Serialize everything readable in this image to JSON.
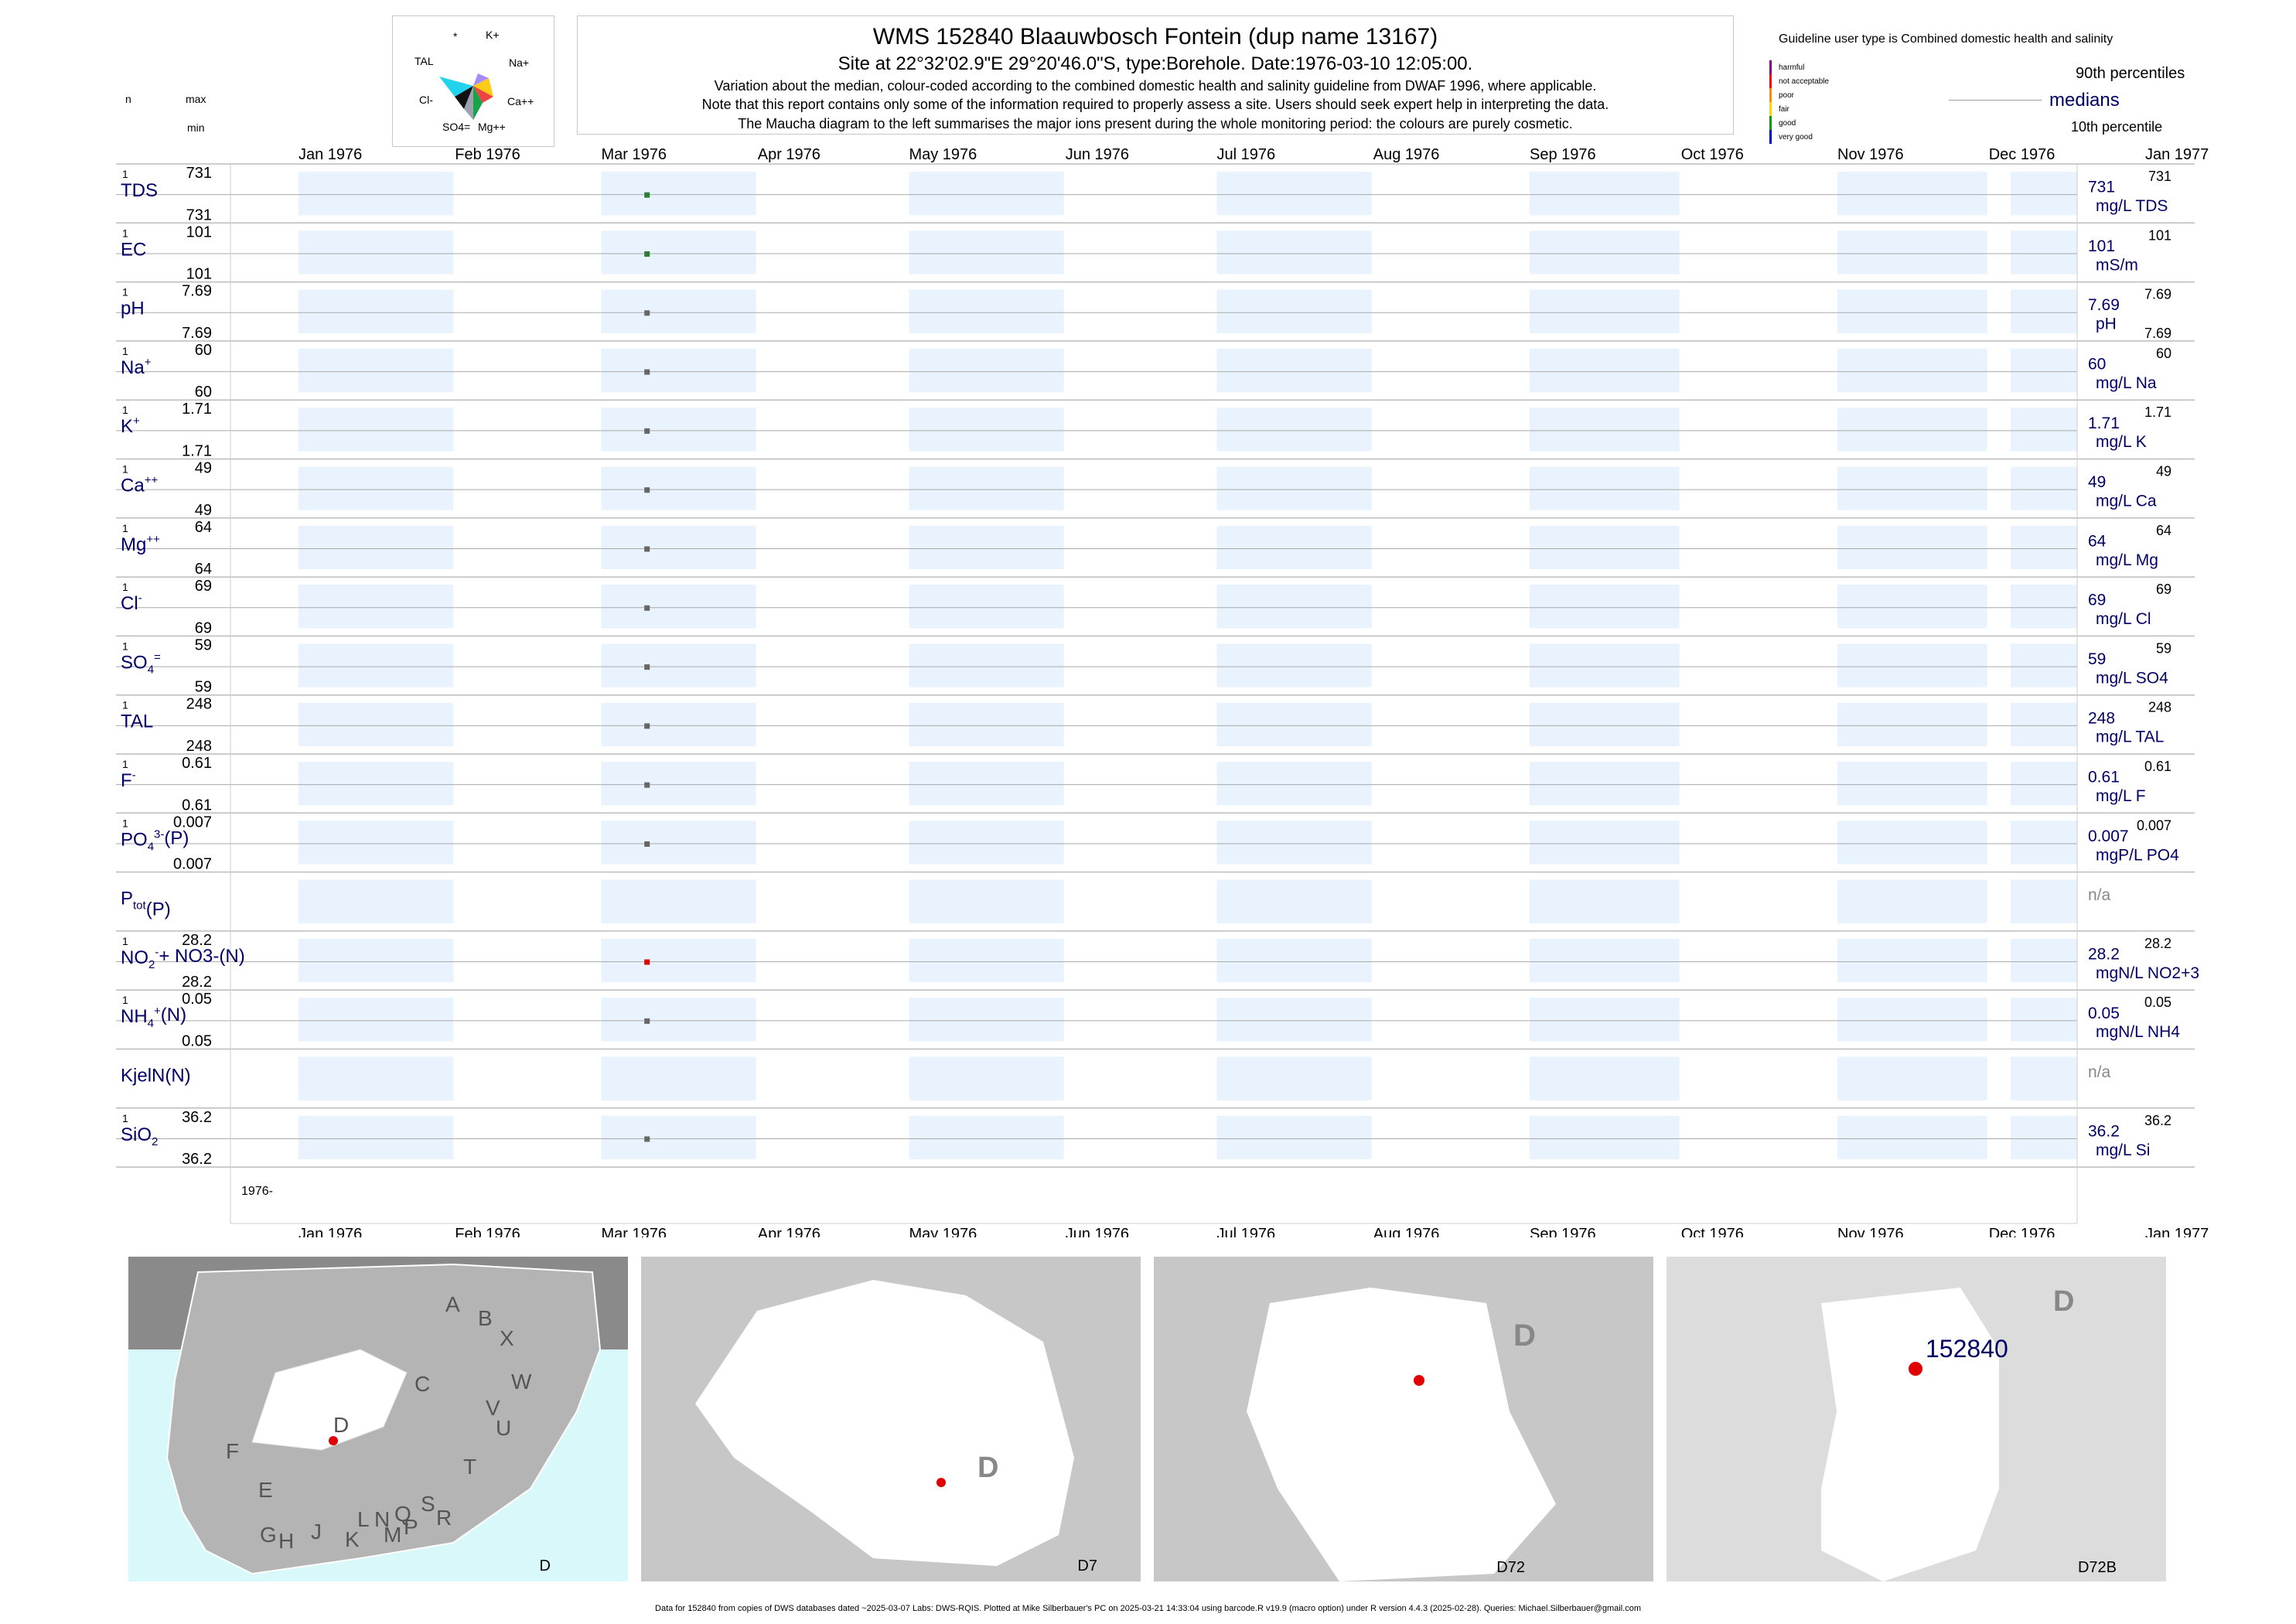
{
  "header": {
    "title": "WMS 152840  Blaauwbosch Fontein (dup name 13167)",
    "subtitle": "Site at 22°32'02.9\"E 29°20'46.0\"S, type:Borehole. Date:1976-03-10 12:05:00.",
    "notes": [
      "Variation about the median,  colour-coded according to the combined domestic health and salinity guideline from DWAF 1996, where applicable.",
      "Note that this report contains only some of the information required to properly assess a site. Users should seek expert help in interpreting the data.",
      "The Maucha diagram to the left summarises the major ions present during the whole monitoring period: the colours are purely cosmetic."
    ]
  },
  "maucha": {
    "labels": [
      "*",
      "K+",
      "TAL",
      "Na+",
      "Cl-",
      "Ca++",
      "SO4=",
      "Mg++"
    ]
  },
  "left_header": {
    "n": "n",
    "max": "max",
    "min": "min"
  },
  "legend": {
    "guideline_title": "Guideline user type is Combined domestic health and salinity",
    "classes": [
      {
        "label": "harmful",
        "color": "#8b008b"
      },
      {
        "label": "not acceptable",
        "color": "#ff0000"
      },
      {
        "label": "poor",
        "color": "#ff8c00"
      },
      {
        "label": "fair",
        "color": "#ffd700"
      },
      {
        "label": "good",
        "color": "#00a000"
      },
      {
        "label": "very good",
        "color": "#0000cd"
      }
    ],
    "p90": "90th percentiles",
    "medians": "medians",
    "p10": "10th percentile"
  },
  "chart_data": {
    "type": "scatter",
    "x_ticks": [
      "Jan 1976",
      "Feb 1976",
      "Mar 1976",
      "Apr 1976",
      "May 1976",
      "Jun 1976",
      "Jul 1976",
      "Aug 1976",
      "Sep 1976",
      "Oct 1976",
      "Nov 1976",
      "Dec 1976",
      "Jan 1977"
    ],
    "sample_date": "1976-03-10",
    "year_label": "1976-",
    "grid": true,
    "rows": [
      {
        "name": "TDS",
        "n": "1",
        "max": "731",
        "min": "731",
        "median": "731",
        "p90": "731",
        "p10": "",
        "unit": "mg/L TDS",
        "value": 731,
        "class_color": "#2e7d32"
      },
      {
        "name": "EC",
        "n": "1",
        "max": "101",
        "min": "101",
        "median": "101",
        "p90": "101",
        "p10": "",
        "unit": "mS/m",
        "value": 101,
        "class_color": "#2e7d32"
      },
      {
        "name": "pH",
        "n": "1",
        "max": "7.69",
        "min": "7.69",
        "median": "7.69",
        "p90": "7.69",
        "p10": "7.69",
        "unit": "pH",
        "value": 7.69,
        "class_color": "#666666"
      },
      {
        "name": "Na",
        "sup": "+",
        "n": "1",
        "max": "60",
        "min": "60",
        "median": "60",
        "p90": "60",
        "p10": "",
        "unit": "mg/L Na",
        "value": 60,
        "class_color": "#666666"
      },
      {
        "name": "K",
        "sup": "+",
        "n": "1",
        "max": "1.71",
        "min": "1.71",
        "median": "1.71",
        "p90": "1.71",
        "p10": "",
        "unit": "mg/L K",
        "value": 1.71,
        "class_color": "#666666"
      },
      {
        "name": "Ca",
        "sup": "++",
        "n": "1",
        "max": "49",
        "min": "49",
        "median": "49",
        "p90": "49",
        "p10": "",
        "unit": "mg/L Ca",
        "value": 49,
        "class_color": "#666666"
      },
      {
        "name": "Mg",
        "sup": "++",
        "n": "1",
        "max": "64",
        "min": "64",
        "median": "64",
        "p90": "64",
        "p10": "",
        "unit": "mg/L Mg",
        "value": 64,
        "class_color": "#666666"
      },
      {
        "name": "Cl",
        "sup": "-",
        "n": "1",
        "max": "69",
        "min": "69",
        "median": "69",
        "p90": "69",
        "p10": "",
        "unit": "mg/L Cl",
        "value": 69,
        "class_color": "#666666"
      },
      {
        "name": "SO",
        "sub": "4",
        "sup": "=",
        "n": "1",
        "max": "59",
        "min": "59",
        "median": "59",
        "p90": "59",
        "p10": "",
        "unit": "mg/L SO4",
        "value": 59,
        "class_color": "#666666"
      },
      {
        "name": "TAL",
        "n": "1",
        "max": "248",
        "min": "248",
        "median": "248",
        "p90": "248",
        "p10": "",
        "unit": "mg/L TAL",
        "value": 248,
        "class_color": "#666666"
      },
      {
        "name": "F",
        "sup": "-",
        "n": "1",
        "max": "0.61",
        "min": "0.61",
        "median": "0.61",
        "p90": "0.61",
        "p10": "",
        "unit": "mg/L F",
        "value": 0.61,
        "class_color": "#666666"
      },
      {
        "name": "PO",
        "sub": "4",
        "sup": "3-",
        "suffix": "(P)",
        "n": "1",
        "max": "0.007",
        "min": "0.007",
        "median": "0.007",
        "p90": "0.007",
        "p10": "",
        "unit": "mgP/L PO4",
        "value": 0.007,
        "class_color": "#666666"
      },
      {
        "name": "P",
        "sub": "tot",
        "suffix": "(P)",
        "n": "",
        "max": "",
        "min": "",
        "median": "n/a",
        "p90": "",
        "p10": "",
        "unit": "",
        "value": null,
        "class_color": "#666666"
      },
      {
        "name": "NO",
        "sub": "2",
        "sup": "-",
        "suffix": "+ NO3-(N)",
        "n": "1",
        "max": "28.2",
        "min": "28.2",
        "median": "28.2",
        "p90": "28.2",
        "p10": "",
        "unit": "mgN/L NO2+3",
        "value": 28.2,
        "class_color": "#e00000"
      },
      {
        "name": "NH",
        "sub": "4",
        "sup": "+",
        "suffix": "(N)",
        "n": "1",
        "max": "0.05",
        "min": "0.05",
        "median": "0.05",
        "p90": "0.05",
        "p10": "",
        "unit": "mgN/L NH4",
        "value": 0.05,
        "class_color": "#666666"
      },
      {
        "name": "KjelN(N)",
        "n": "",
        "max": "",
        "min": "",
        "median": "n/a",
        "p90": "",
        "p10": "",
        "unit": "",
        "value": null,
        "class_color": "#666666"
      },
      {
        "name": "SiO",
        "sub": "2",
        "n": "1",
        "max": "36.2",
        "min": "36.2",
        "median": "36.2",
        "p90": "36.2",
        "p10": "",
        "unit": "mg/L Si",
        "value": 36.2,
        "class_color": "#666666"
      }
    ]
  },
  "maps": [
    {
      "caption": "D",
      "letters": [
        "A",
        "B",
        "X",
        "C",
        "W",
        "V",
        "U",
        "D",
        "T",
        "F",
        "E",
        "S",
        "R",
        "Q",
        "N",
        "L",
        "M",
        "P",
        "K",
        "J",
        "H",
        "G"
      ]
    },
    {
      "caption": "D7",
      "region": "D"
    },
    {
      "caption": "D72",
      "region": "D"
    },
    {
      "caption": "D72B",
      "region": "D",
      "site": "152840"
    }
  ],
  "footer": "Data for 152840 from copies of DWS databases dated ~2025-03-07 Labs: DWS-RQIS. Plotted at Mike Silberbauer's PC on 2025-03-21 14:33:04 using barcode.R v19.9 (macro option) under R version 4.4.3 (2025-02-28). Queries: Michael.Silberbauer@gmail.com"
}
